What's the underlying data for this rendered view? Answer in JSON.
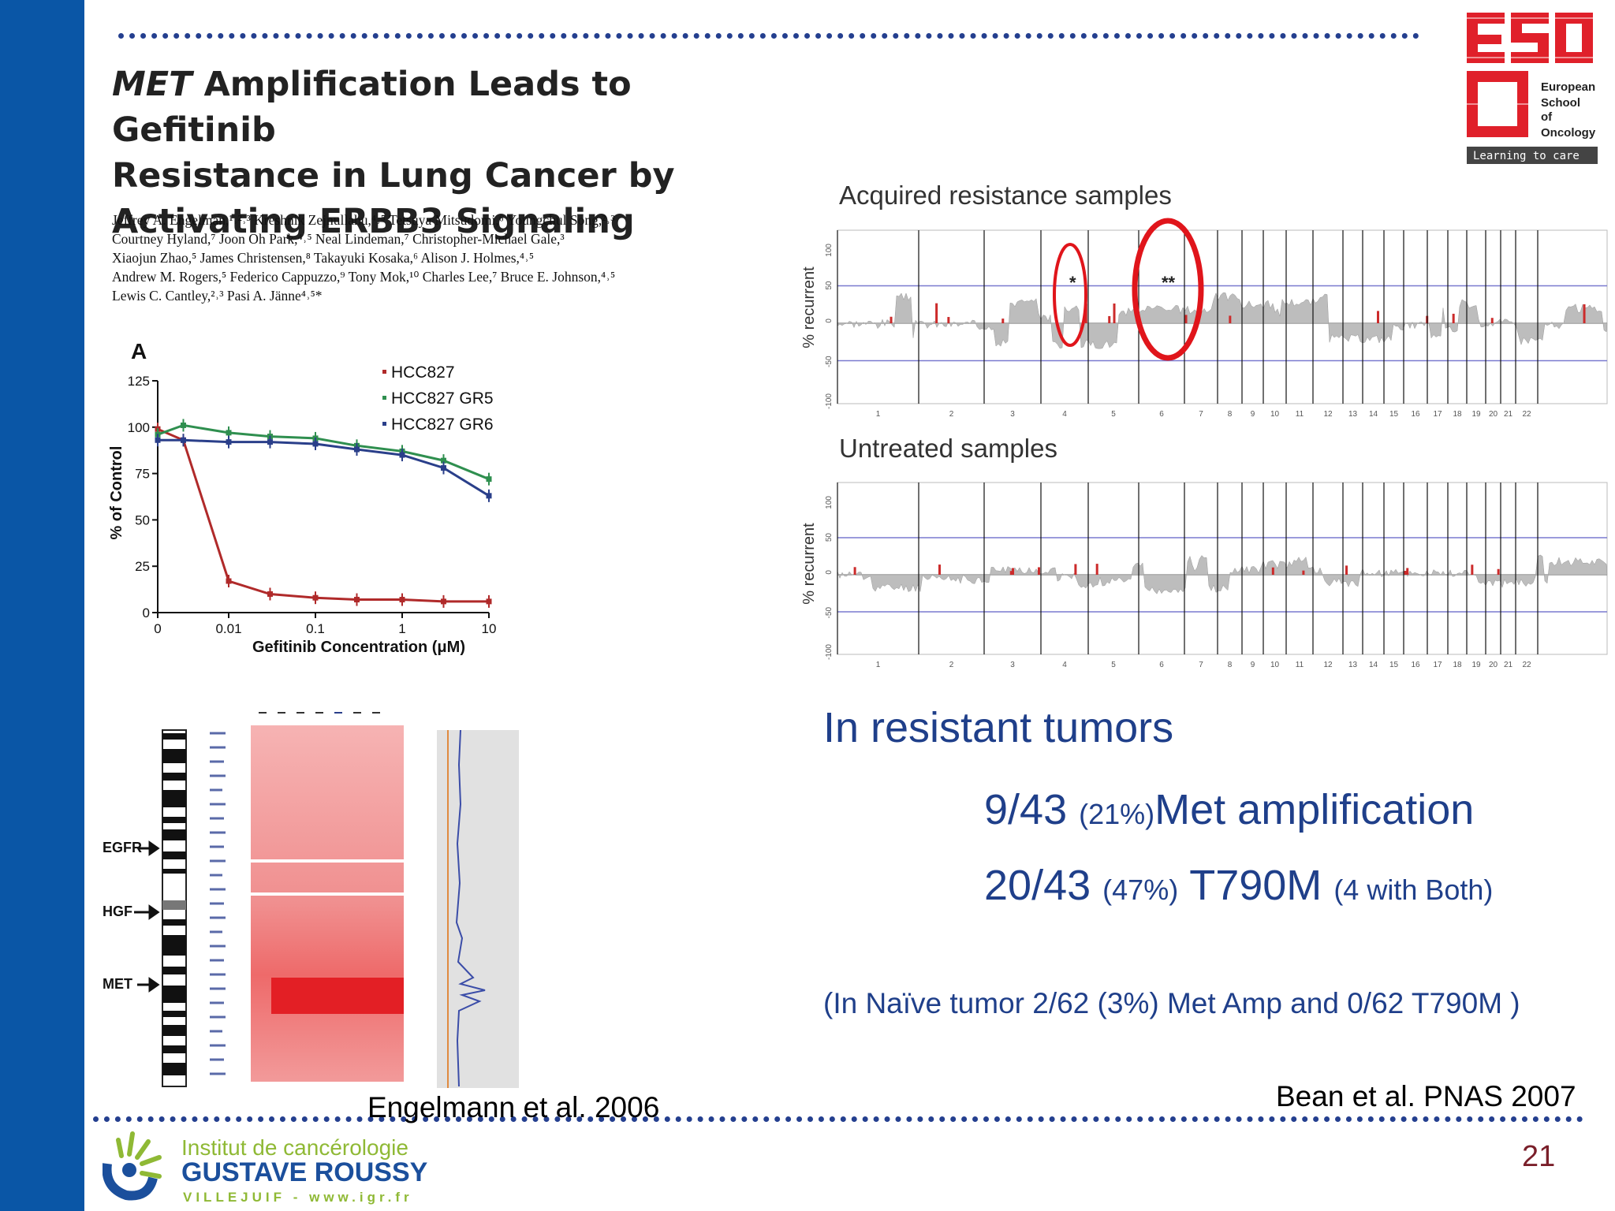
{
  "paper": {
    "title_line1_italic": "MET",
    "title_line1_rest": " Amplification Leads to Gefitinib",
    "title_line2": "Resistance in Lung Cancer by",
    "title_line3": "Activating ERBB3 Signaling",
    "authors": [
      "Jeffrey A. Engelman,¹˒²˒³ Kreshnik Zejnullahu,⁴˒⁵ Tetsuya Mitsudomi,⁶ Youngchul Song,²˒³",
      "Courtney Hyland,⁷ Joon Oh Park,⁴˒⁵ Neal Lindeman,⁷ Christopher-Michael Gale,³",
      "Xiaojun Zhao,⁵ James Christensen,⁸ Takayuki Kosaka,⁶ Alison J. Holmes,⁴˒⁵",
      "Andrew M. Rogers,⁵ Federico Cappuzzo,⁹ Tony Mok,¹⁰ Charles Lee,⁷ Bruce E. Johnson,⁴˒⁵",
      "Lewis C. Cantley,²˒³ Pasi A. Jänne⁴˒⁵*"
    ]
  },
  "chart_data": [
    {
      "type": "line",
      "panel_label": "A",
      "xlabel": "Gefitinib Concentration (μM)",
      "ylabel": "% of Control",
      "x_scale": "log",
      "x_ticks": [
        "0",
        "0.01",
        "0.1",
        "1",
        "10"
      ],
      "y_ticks": [
        "0",
        "25",
        "50",
        "75",
        "100",
        "125"
      ],
      "ylim": [
        0,
        125
      ],
      "x": [
        0,
        0.003,
        0.01,
        0.03,
        0.1,
        0.3,
        1,
        3,
        10
      ],
      "series": [
        {
          "name": "HCC827",
          "color": "#b02a2a",
          "values": [
            99,
            93,
            17,
            10,
            8,
            7,
            7,
            6,
            6
          ]
        },
        {
          "name": "HCC827 GR5",
          "color": "#2f8f4f",
          "values": [
            96,
            101,
            97,
            95,
            94,
            90,
            87,
            82,
            72
          ]
        },
        {
          "name": "HCC827 GR6",
          "color": "#2a3f8a",
          "values": [
            93,
            93,
            92,
            92,
            91,
            88,
            85,
            78,
            63
          ]
        }
      ]
    },
    {
      "type": "area",
      "title": "Acquired resistance samples",
      "ylabel": "% recurrent",
      "y_ticks": [
        "-100",
        "-50",
        "0",
        "50",
        "100"
      ],
      "ylim": [
        -100,
        100
      ],
      "x_ticks": [
        "1",
        "2",
        "3",
        "4",
        "5",
        "6",
        "7",
        "8",
        "9",
        "10",
        "11",
        "12",
        "13",
        "14",
        "15",
        "16",
        "17",
        "18",
        "19",
        "20",
        "21",
        "22"
      ],
      "annotations": [
        "*",
        "**"
      ]
    },
    {
      "type": "area",
      "title": "Untreated samples",
      "ylabel": "% recurrent",
      "y_ticks": [
        "-100",
        "-50",
        "0",
        "50",
        "100"
      ],
      "ylim": [
        -100,
        100
      ],
      "x_ticks": [
        "1",
        "2",
        "3",
        "4",
        "5",
        "6",
        "7",
        "8",
        "9",
        "10",
        "11",
        "12",
        "13",
        "14",
        "15",
        "16",
        "17",
        "18",
        "19",
        "20",
        "21",
        "22"
      ]
    }
  ],
  "heatmap_labels": {
    "egfr": "EGFR",
    "hgf": "HGF",
    "met": "MET"
  },
  "body": {
    "heading": "In resistant tumors",
    "met_count": "9/43",
    "met_pct": "(21%)",
    "met_text": "Met amplification",
    "t790_count": "20/43",
    "t790_pct": "(47%)",
    "t790_text": "T790M",
    "t790_both": "(4 with Both)",
    "naive": "(In Naïve tumor 2/62 (3%) Met Amp and 0/62 T790M )"
  },
  "citations": {
    "left": "Engelmann et al. 2006",
    "right": "Bean et al. PNAS 2007"
  },
  "page_number": "21",
  "eso_logo": {
    "line1": "European",
    "line2": "School",
    "line3": "of",
    "line4": "Oncology",
    "tagline": "Learning to care"
  },
  "gr_logo": {
    "line1": "Institut de cancérologie",
    "line2": "GUSTAVE ROUSSY",
    "line3": "VILLEJUIF - www.igr.fr"
  },
  "colors": {
    "slide_blue": "#0a56a6",
    "dot_line": "#243f8f",
    "body_text": "#1f3f8a",
    "page_number": "#7a1f2a",
    "eso_red": "#e0202a",
    "gr_blue": "#1b4f9c",
    "gr_green": "#8fb935"
  }
}
